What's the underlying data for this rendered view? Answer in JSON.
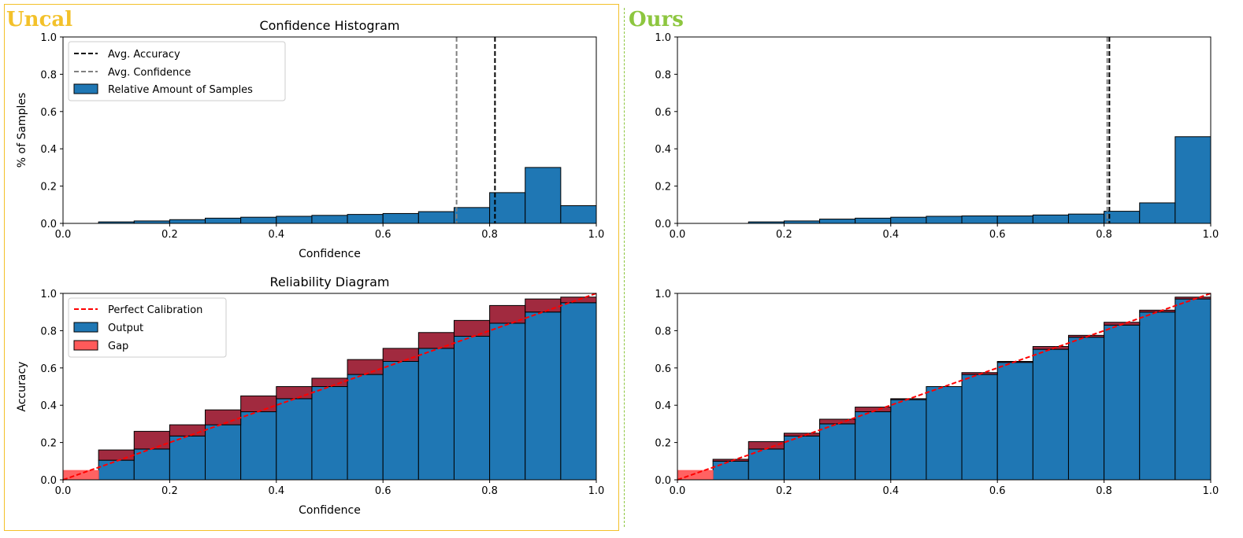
{
  "panels": {
    "left": {
      "label": "Uncal",
      "label_color": "#f3c12a",
      "frame_color": "#f3c12a"
    },
    "right": {
      "label": "Ours",
      "label_color": "#8dc63f",
      "separator_color": "#8dc63f"
    }
  },
  "colors": {
    "bar_blue": "#1f77b4",
    "gap_dark": "#9c1f35",
    "gap_light": "#ff5a5a",
    "perfect_line": "#ff0000",
    "avg_accuracy": "#000000",
    "avg_confidence": "#808080"
  },
  "chart_data": [
    {
      "id": "uncal-histogram",
      "type": "bar",
      "title": "Confidence Histogram",
      "xlabel": "Confidence",
      "ylabel": "% of Samples",
      "xlim": [
        0,
        1
      ],
      "ylim": [
        0,
        1
      ],
      "xticks": [
        "0.0",
        "0.2",
        "0.4",
        "0.6",
        "0.8",
        "1.0"
      ],
      "yticks": [
        "0.0",
        "0.2",
        "0.4",
        "0.6",
        "0.8",
        "1.0"
      ],
      "bins": 15,
      "values": [
        0.0,
        0.008,
        0.013,
        0.02,
        0.028,
        0.033,
        0.038,
        0.043,
        0.048,
        0.053,
        0.063,
        0.085,
        0.165,
        0.3,
        0.095
      ],
      "avg_accuracy": 0.81,
      "avg_confidence": 0.738,
      "legend": {
        "placement": "top-left",
        "entries": [
          "Avg. Accuracy",
          "Avg. Confidence",
          "Relative Amount of Samples"
        ]
      }
    },
    {
      "id": "uncal-reliability",
      "type": "bar",
      "title": "Reliability Diagram",
      "xlabel": "Confidence",
      "ylabel": "Accuracy",
      "xlim": [
        0,
        1
      ],
      "ylim": [
        0,
        1
      ],
      "xticks": [
        "0.0",
        "0.2",
        "0.4",
        "0.6",
        "0.8",
        "1.0"
      ],
      "yticks": [
        "0.0",
        "0.2",
        "0.4",
        "0.6",
        "0.8",
        "1.0"
      ],
      "bins": 15,
      "output": [
        0.0,
        0.105,
        0.165,
        0.235,
        0.295,
        0.365,
        0.435,
        0.5,
        0.565,
        0.635,
        0.705,
        0.77,
        0.84,
        0.9,
        0.95
      ],
      "expected": [
        0.05,
        0.16,
        0.26,
        0.295,
        0.375,
        0.45,
        0.5,
        0.545,
        0.645,
        0.705,
        0.79,
        0.855,
        0.935,
        0.97,
        0.98
      ],
      "legend": {
        "placement": "top-left",
        "entries": [
          "Perfect Calibration",
          "Output",
          "Gap"
        ]
      }
    },
    {
      "id": "ours-histogram",
      "type": "bar",
      "title": "",
      "xlabel": "",
      "ylabel": "",
      "xlim": [
        0,
        1
      ],
      "ylim": [
        0,
        1
      ],
      "xticks": [
        "0.0",
        "0.2",
        "0.4",
        "0.6",
        "0.8",
        "1.0"
      ],
      "yticks": [
        "0.0",
        "0.2",
        "0.4",
        "0.6",
        "0.8",
        "1.0"
      ],
      "bins": 15,
      "values": [
        0.0,
        0.0,
        0.008,
        0.013,
        0.023,
        0.028,
        0.033,
        0.038,
        0.04,
        0.04,
        0.045,
        0.05,
        0.065,
        0.11,
        0.465
      ],
      "avg_accuracy": 0.81,
      "avg_confidence": 0.806
    },
    {
      "id": "ours-reliability",
      "type": "bar",
      "title": "",
      "xlabel": "",
      "ylabel": "",
      "xlim": [
        0,
        1
      ],
      "ylim": [
        0,
        1
      ],
      "xticks": [
        "0.0",
        "0.2",
        "0.4",
        "0.6",
        "0.8",
        "1.0"
      ],
      "yticks": [
        "0.0",
        "0.2",
        "0.4",
        "0.6",
        "0.8",
        "1.0"
      ],
      "bins": 15,
      "output": [
        0.0,
        0.1,
        0.165,
        0.235,
        0.3,
        0.365,
        0.43,
        0.5,
        0.565,
        0.63,
        0.7,
        0.765,
        0.83,
        0.9,
        0.97
      ],
      "expected": [
        0.05,
        0.11,
        0.205,
        0.25,
        0.325,
        0.39,
        0.435,
        0.5,
        0.575,
        0.635,
        0.715,
        0.775,
        0.845,
        0.91,
        0.98
      ]
    }
  ]
}
